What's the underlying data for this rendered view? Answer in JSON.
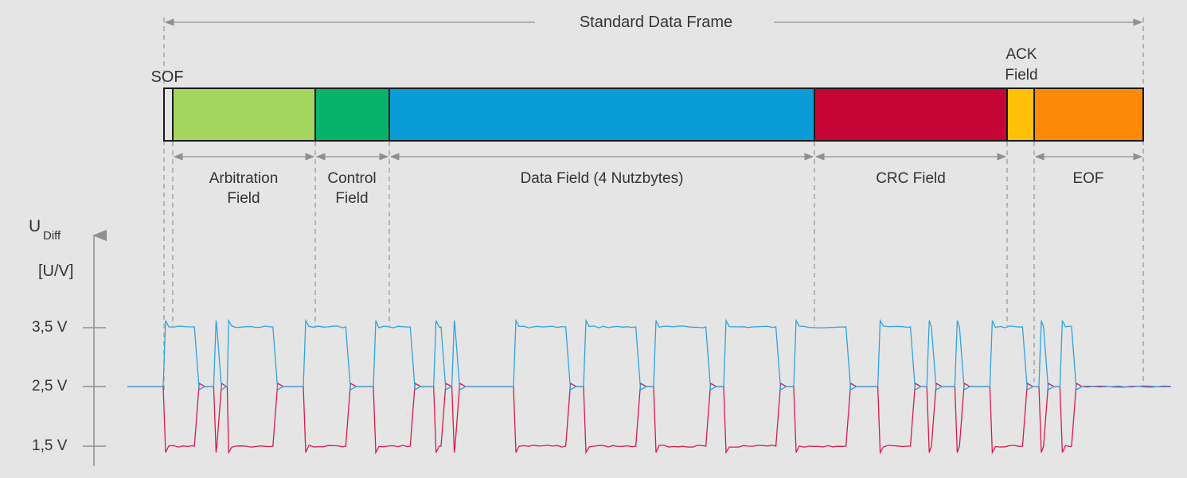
{
  "frame": {
    "title": "Standard Data Frame"
  },
  "fields": [
    {
      "id": "sof",
      "label": "SOF",
      "color": "#e5e5e5",
      "bits": 1
    },
    {
      "id": "arbitration",
      "label": "Arbitration Field",
      "color": "#a3d55f",
      "bits": 12
    },
    {
      "id": "control",
      "label": "Control Field",
      "color": "#06b36b",
      "bits": 6
    },
    {
      "id": "data",
      "label": "Data Field (4 Nutzbytes)",
      "color": "#0a9cd6",
      "bits": 32
    },
    {
      "id": "crc",
      "label": "CRC Field",
      "color": "#c40535",
      "bits": 16
    },
    {
      "id": "ack",
      "label": "ACK Field",
      "color": "#ffc107",
      "bits": 2
    },
    {
      "id": "eof",
      "label": "EOF",
      "color": "#ff8a0a",
      "bits": 9
    }
  ],
  "axis": {
    "label_main": "U",
    "label_sub": "Diff",
    "unit": "[U/V]",
    "ticks": [
      {
        "label": "3,5 V",
        "value": 3.5
      },
      {
        "label": "2,5 V",
        "value": 2.5
      },
      {
        "label": "1,5 V",
        "value": 1.5
      }
    ]
  },
  "signal": {
    "can_high_color": "#2fa3e0",
    "can_low_color": "#d81b4a",
    "recessive_level": 2.5,
    "dominant_high": 3.5,
    "dominant_low": 1.5,
    "dominant_pulses": [
      [
        0.0,
        2.4
      ],
      [
        3.6,
        4.0
      ],
      [
        4.5,
        8.0
      ],
      [
        10.0,
        13.2
      ],
      [
        15.0,
        17.8
      ],
      [
        19.3,
        20.0
      ],
      [
        20.6,
        21.0
      ],
      [
        25.0,
        28.9
      ],
      [
        30.0,
        33.9
      ],
      [
        35.0,
        38.9
      ],
      [
        40.0,
        43.9
      ],
      [
        45.0,
        48.9
      ],
      [
        51.0,
        53.5
      ],
      [
        54.5,
        55.0
      ],
      [
        56.5,
        57.0
      ],
      [
        59.0,
        61.5
      ],
      [
        62.5,
        63.0
      ]
    ],
    "ack_pulse": [
      64.0,
      65.0
    ]
  }
}
